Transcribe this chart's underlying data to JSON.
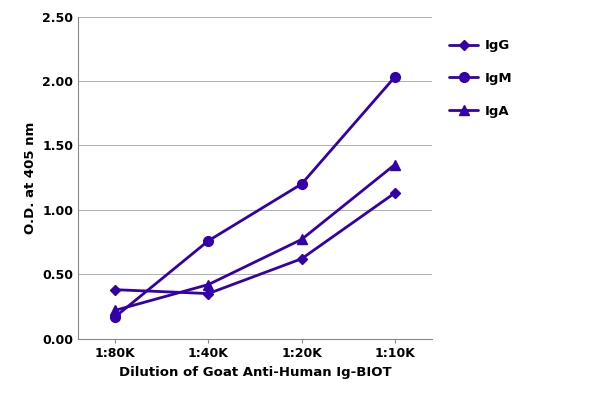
{
  "x_labels": [
    "1:80K",
    "1:40K",
    "1:20K",
    "1:10K"
  ],
  "x_positions": [
    0,
    1,
    2,
    3
  ],
  "IgG": [
    0.38,
    0.35,
    0.62,
    1.13
  ],
  "IgM": [
    0.17,
    0.76,
    1.2,
    2.03
  ],
  "IgA": [
    0.22,
    0.42,
    0.77,
    1.35
  ],
  "line_color": "#3300aa",
  "ylabel": "O.D. at 405 nm",
  "xlabel": "Dilution of Goat Anti-Human Ig-BIOT",
  "ylim": [
    0.0,
    2.5
  ],
  "yticks": [
    0.0,
    0.5,
    1.0,
    1.5,
    2.0,
    2.5
  ],
  "legend_labels": [
    "IgG",
    "IgM",
    "IgA"
  ],
  "bg_color": "#ffffff",
  "grid_color": "#b0b0b0",
  "label_fontsize": 9.5,
  "tick_fontsize": 9,
  "legend_fontsize": 9.5,
  "linewidth": 2.0,
  "markersize": 6
}
